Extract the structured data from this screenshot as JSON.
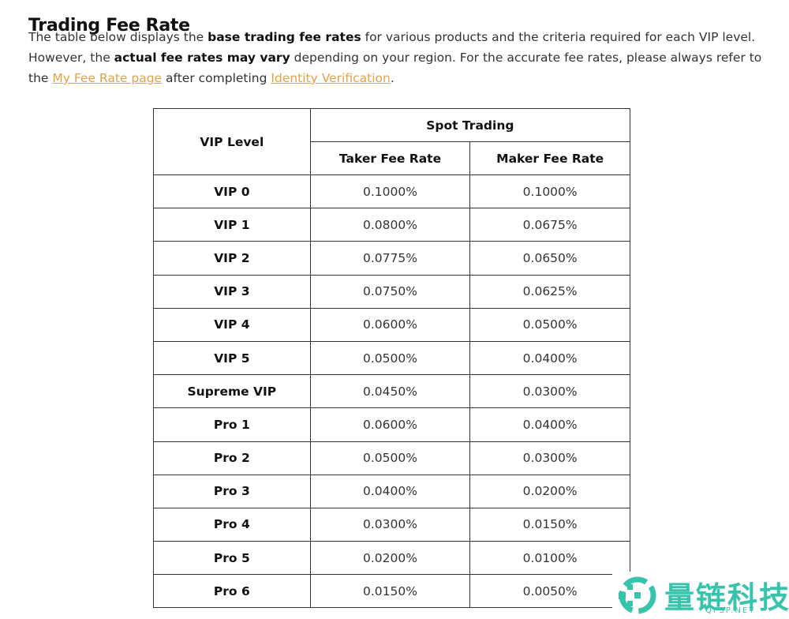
{
  "page": {
    "title": "Trading Fee Rate",
    "intro": {
      "p1": "The table below displays the ",
      "b1": "base trading fee rates",
      "p2": " for various products and the criteria required for each VIP level. However, the ",
      "b2": "actual fee rates may vary",
      "p3": " depending on your region. For the accurate fee rates, please always refer to the ",
      "link1": "My Fee Rate page",
      "p4": " after completing ",
      "link2": "Identity Verification",
      "p5": "."
    }
  },
  "table": {
    "headers": {
      "vip_level": "VIP Level",
      "group": "Spot Trading",
      "taker": "Taker Fee Rate",
      "maker": "Maker Fee Rate"
    },
    "rows": [
      {
        "level": "VIP 0",
        "taker": "0.1000%",
        "maker": "0.1000%"
      },
      {
        "level": "VIP 1",
        "taker": "0.0800%",
        "maker": "0.0675%"
      },
      {
        "level": "VIP 2",
        "taker": "0.0775%",
        "maker": "0.0650%"
      },
      {
        "level": "VIP 3",
        "taker": "0.0750%",
        "maker": "0.0625%"
      },
      {
        "level": "VIP 4",
        "taker": "0.0600%",
        "maker": "0.0500%"
      },
      {
        "level": "VIP 5",
        "taker": "0.0500%",
        "maker": "0.0400%"
      },
      {
        "level": "Supreme VIP",
        "taker": "0.0450%",
        "maker": "0.0300%"
      },
      {
        "level": "Pro 1",
        "taker": "0.0600%",
        "maker": "0.0400%"
      },
      {
        "level": "Pro 2",
        "taker": "0.0500%",
        "maker": "0.0300%"
      },
      {
        "level": "Pro 3",
        "taker": "0.0400%",
        "maker": "0.0200%"
      },
      {
        "level": "Pro 4",
        "taker": "0.0300%",
        "maker": "0.0150%"
      },
      {
        "level": "Pro 5",
        "taker": "0.0200%",
        "maker": "0.0100%"
      },
      {
        "level": "Pro 6",
        "taker": "0.0150%",
        "maker": "0.0050%"
      }
    ]
  },
  "watermark": {
    "text": "量链科技",
    "sub": "QFSP.NET",
    "color": "#38c4ac"
  }
}
